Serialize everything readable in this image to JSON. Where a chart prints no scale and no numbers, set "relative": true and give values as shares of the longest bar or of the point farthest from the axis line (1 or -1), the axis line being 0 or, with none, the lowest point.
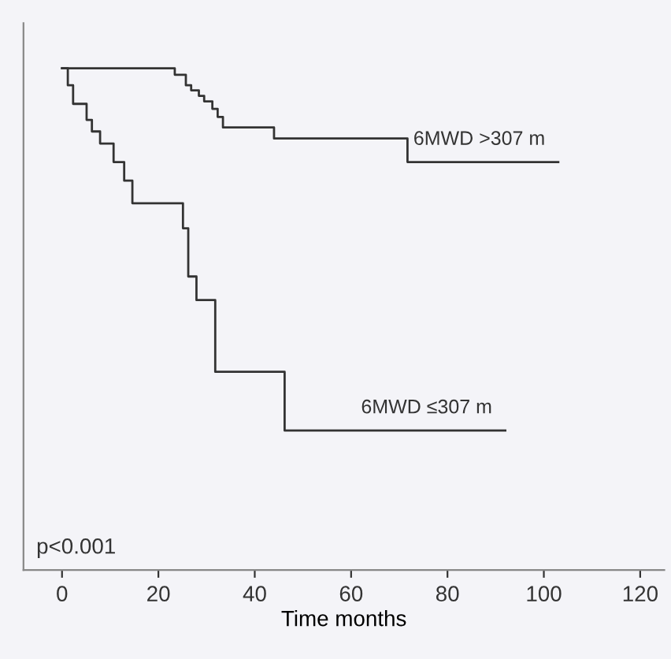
{
  "chart_data": {
    "type": "step",
    "relative": true,
    "xlabel": "Time months",
    "xlim": [
      -8,
      125
    ],
    "xticks": [
      0,
      20,
      40,
      60,
      80,
      100,
      120
    ],
    "grid": false,
    "legend": false,
    "series": [
      {
        "name": "6MWD >307 m",
        "color": "#333333",
        "x": [
          0,
          23.4,
          25.7,
          26.8,
          28.4,
          29.5,
          31.2,
          32.3,
          33.4,
          44,
          71.7,
          103
        ],
        "values": [
          1,
          0.987,
          0.966,
          0.956,
          0.945,
          0.934,
          0.919,
          0.903,
          0.882,
          0.86,
          0.813,
          0.813
        ]
      },
      {
        "name": "6MWD ≤307 m",
        "color": "#333333",
        "x": [
          0,
          1.2,
          2.3,
          5.1,
          6.2,
          7.9,
          10.7,
          12.9,
          14.6,
          25.1,
          26.2,
          27.9,
          31.8,
          46.2,
          92
        ],
        "values": [
          1,
          0.966,
          0.929,
          0.897,
          0.874,
          0.85,
          0.813,
          0.776,
          0.731,
          0.681,
          0.585,
          0.538,
          0.395,
          0.278,
          0.278
        ]
      }
    ],
    "annotations": [
      "p<0.001"
    ]
  }
}
